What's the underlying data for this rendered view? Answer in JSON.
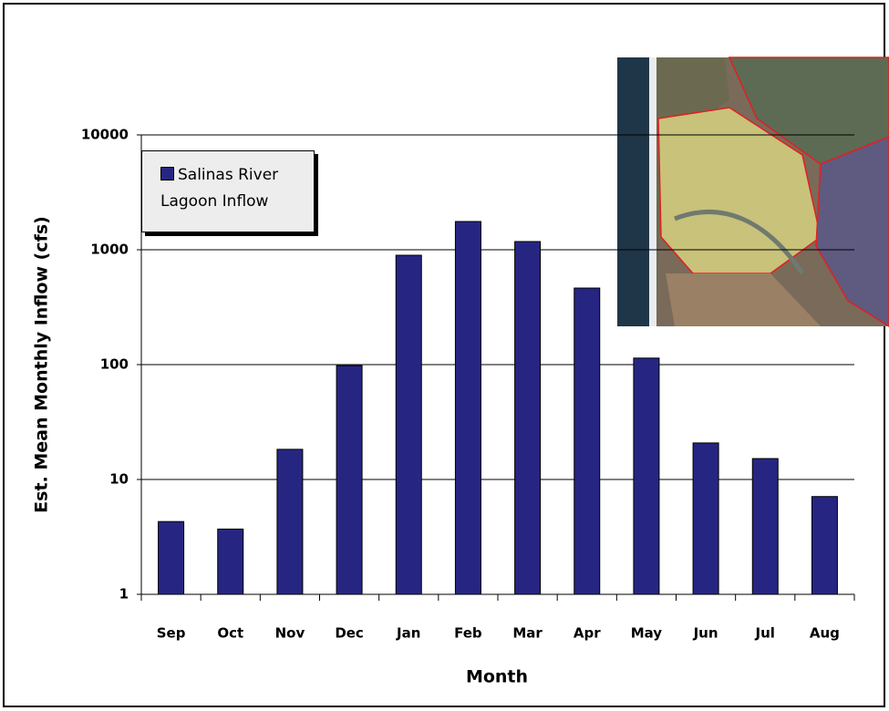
{
  "chart_data": {
    "type": "bar",
    "x_label": "Month",
    "y_label": "Est. Mean Monthly Inflow (cfs)",
    "categories": [
      "Sep",
      "Oct",
      "Nov",
      "Dec",
      "Jan",
      "Feb",
      "Mar",
      "Apr",
      "May",
      "Jun",
      "Jul",
      "Aug"
    ],
    "series": [
      {
        "name": "Salinas River Lagoon Inflow",
        "color": "#262682",
        "values": [
          4.3,
          3.7,
          18.3,
          98,
          896,
          1762,
          1179,
          464,
          114,
          20.8,
          15.2,
          7.1
        ]
      }
    ],
    "ylim": [
      1,
      10000
    ],
    "yticks": [
      1,
      10,
      100,
      1000,
      10000
    ],
    "log_scale": true,
    "grid": true,
    "legend": "upper left"
  }
}
